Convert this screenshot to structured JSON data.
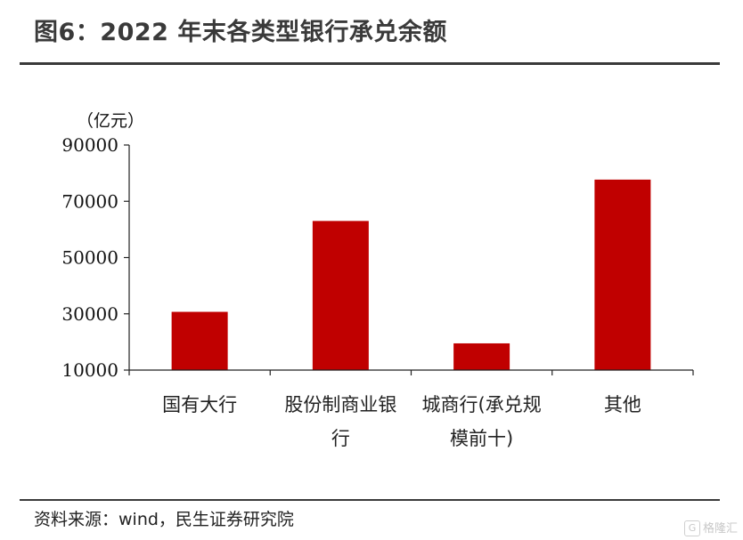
{
  "header": {
    "title": "图6：2022 年末各类型银行承兑余额"
  },
  "footer": {
    "source": "资料来源：wind，民生证券研究院"
  },
  "watermark": {
    "logo": "G",
    "text": "格隆汇"
  },
  "chart_data": {
    "type": "bar",
    "ylabel": "（亿元）",
    "ylim": [
      10000,
      90000
    ],
    "yticks": [
      10000,
      30000,
      50000,
      70000,
      90000
    ],
    "categories": [
      [
        "国有大行"
      ],
      [
        "股份制商业银",
        "行"
      ],
      [
        "城商行(承兑规",
        "模前十)"
      ],
      [
        "其他"
      ]
    ],
    "values": [
      30700,
      63000,
      19500,
      77700
    ],
    "bar_color": "#c00000",
    "grid": false
  }
}
